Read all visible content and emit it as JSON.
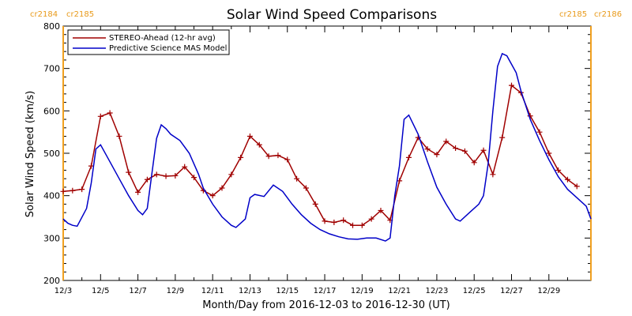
{
  "chart_data": {
    "type": "line",
    "title": "Solar Wind Speed Comparisons",
    "xlabel": "Month/Day from 2016-12-03 to 2016-12-30 (UT)",
    "ylabel": "Solar Wind Speed (km/s)",
    "xlim": [
      "2016-12-03T00",
      "2016-12-31T06"
    ],
    "ylim": [
      200,
      800
    ],
    "y_ticks": [
      200,
      300,
      400,
      500,
      600,
      700,
      800
    ],
    "x_ticks": [
      {
        "date": "2016-12-03",
        "label": "12/3"
      },
      {
        "date": "2016-12-05",
        "label": "12/5"
      },
      {
        "date": "2016-12-07",
        "label": "12/7"
      },
      {
        "date": "2016-12-09",
        "label": "12/9"
      },
      {
        "date": "2016-12-11",
        "label": "12/11"
      },
      {
        "date": "2016-12-13",
        "label": "12/13"
      },
      {
        "date": "2016-12-15",
        "label": "12/15"
      },
      {
        "date": "2016-12-17",
        "label": "12/17"
      },
      {
        "date": "2016-12-19",
        "label": "12/19"
      },
      {
        "date": "2016-12-21",
        "label": "12/21"
      },
      {
        "date": "2016-12-23",
        "label": "12/23"
      },
      {
        "date": "2016-12-25",
        "label": "12/25"
      },
      {
        "date": "2016-12-27",
        "label": "12/27"
      },
      {
        "date": "2016-12-29",
        "label": "12/29"
      }
    ],
    "carrington_markers": [
      {
        "date": "2016-12-03T00",
        "labels": [
          "cr2184",
          "cr2185"
        ],
        "side": "left"
      },
      {
        "date": "2016-12-31T06",
        "labels": [
          "cr2185",
          "cr2186"
        ],
        "side": "right"
      }
    ],
    "legend_position": "top-left",
    "series": [
      {
        "name": "STEREO-Ahead (12-hr avg)",
        "color": "#A00000",
        "marker": "plus",
        "points": [
          [
            "2016-12-03T00",
            410
          ],
          [
            "2016-12-03T12",
            412
          ],
          [
            "2016-12-04T00",
            415
          ],
          [
            "2016-12-04T12",
            470
          ],
          [
            "2016-12-05T00",
            587
          ],
          [
            "2016-12-05T12",
            595
          ],
          [
            "2016-12-06T00",
            540
          ],
          [
            "2016-12-06T12",
            455
          ],
          [
            "2016-12-07T00",
            408
          ],
          [
            "2016-12-07T12",
            438
          ],
          [
            "2016-12-08T00",
            450
          ],
          [
            "2016-12-08T12",
            446
          ],
          [
            "2016-12-09T00",
            447
          ],
          [
            "2016-12-09T12",
            468
          ],
          [
            "2016-12-10T00",
            443
          ],
          [
            "2016-12-10T12",
            412
          ],
          [
            "2016-12-11T00",
            400
          ],
          [
            "2016-12-11T12",
            418
          ],
          [
            "2016-12-12T00",
            450
          ],
          [
            "2016-12-12T12",
            490
          ],
          [
            "2016-12-13T00",
            540
          ],
          [
            "2016-12-13T12",
            520
          ],
          [
            "2016-12-14T00",
            493
          ],
          [
            "2016-12-14T12",
            495
          ],
          [
            "2016-12-15T00",
            485
          ],
          [
            "2016-12-15T12",
            440
          ],
          [
            "2016-12-16T00",
            418
          ],
          [
            "2016-12-16T12",
            380
          ],
          [
            "2016-12-17T00",
            340
          ],
          [
            "2016-12-17T12",
            337
          ],
          [
            "2016-12-18T00",
            342
          ],
          [
            "2016-12-18T12",
            330
          ],
          [
            "2016-12-19T00",
            330
          ],
          [
            "2016-12-19T12",
            345
          ],
          [
            "2016-12-20T00",
            365
          ],
          [
            "2016-12-20T12",
            342
          ],
          [
            "2016-12-21T00",
            435
          ],
          [
            "2016-12-21T12",
            490
          ],
          [
            "2016-12-22T00",
            537
          ],
          [
            "2016-12-22T12",
            510
          ],
          [
            "2016-12-23T00",
            497
          ],
          [
            "2016-12-23T12",
            528
          ],
          [
            "2016-12-24T00",
            512
          ],
          [
            "2016-12-24T12",
            505
          ],
          [
            "2016-12-25T00",
            478
          ],
          [
            "2016-12-25T12",
            507
          ],
          [
            "2016-12-26T00",
            450
          ],
          [
            "2016-12-26T12",
            537
          ],
          [
            "2016-12-27T00",
            660
          ],
          [
            "2016-12-27T12",
            643
          ],
          [
            "2016-12-28T00",
            588
          ],
          [
            "2016-12-28T12",
            550
          ],
          [
            "2016-12-29T00",
            500
          ],
          [
            "2016-12-29T12",
            460
          ],
          [
            "2016-12-30T00",
            438
          ],
          [
            "2016-12-30T12",
            422
          ]
        ]
      },
      {
        "name": "Predictive Science MAS Model",
        "color": "#0000C8",
        "marker": "none",
        "points": [
          [
            "2016-12-03T00",
            345
          ],
          [
            "2016-12-03T06",
            335
          ],
          [
            "2016-12-03T12",
            330
          ],
          [
            "2016-12-03T18",
            328
          ],
          [
            "2016-12-04T06",
            370
          ],
          [
            "2016-12-04T12",
            430
          ],
          [
            "2016-12-04T18",
            510
          ],
          [
            "2016-12-05T00",
            520
          ],
          [
            "2016-12-05T12",
            480
          ],
          [
            "2016-12-06T00",
            440
          ],
          [
            "2016-12-06T12",
            400
          ],
          [
            "2016-12-07T00",
            365
          ],
          [
            "2016-12-07T06",
            355
          ],
          [
            "2016-12-07T12",
            370
          ],
          [
            "2016-12-08T00",
            535
          ],
          [
            "2016-12-08T06",
            567
          ],
          [
            "2016-12-08T12",
            558
          ],
          [
            "2016-12-08T18",
            545
          ],
          [
            "2016-12-09T06",
            530
          ],
          [
            "2016-12-09T18",
            500
          ],
          [
            "2016-12-10T06",
            450
          ],
          [
            "2016-12-10T12",
            418
          ],
          [
            "2016-12-11T00",
            380
          ],
          [
            "2016-12-11T12",
            350
          ],
          [
            "2016-12-12T00",
            330
          ],
          [
            "2016-12-12T06",
            325
          ],
          [
            "2016-12-12T18",
            345
          ],
          [
            "2016-12-13T00",
            395
          ],
          [
            "2016-12-13T06",
            403
          ],
          [
            "2016-12-13T18",
            398
          ],
          [
            "2016-12-14T06",
            425
          ],
          [
            "2016-12-14T18",
            410
          ],
          [
            "2016-12-15T06",
            380
          ],
          [
            "2016-12-15T18",
            355
          ],
          [
            "2016-12-16T06",
            335
          ],
          [
            "2016-12-16T18",
            320
          ],
          [
            "2016-12-17T06",
            310
          ],
          [
            "2016-12-17T18",
            303
          ],
          [
            "2016-12-18T06",
            298
          ],
          [
            "2016-12-18T18",
            297
          ],
          [
            "2016-12-19T06",
            300
          ],
          [
            "2016-12-19T18",
            300
          ],
          [
            "2016-12-20T06",
            293
          ],
          [
            "2016-12-20T12",
            300
          ],
          [
            "2016-12-20T18",
            400
          ],
          [
            "2016-12-21T00",
            470
          ],
          [
            "2016-12-21T06",
            580
          ],
          [
            "2016-12-21T12",
            590
          ],
          [
            "2016-12-22T00",
            545
          ],
          [
            "2016-12-22T12",
            480
          ],
          [
            "2016-12-23T00",
            420
          ],
          [
            "2016-12-23T12",
            380
          ],
          [
            "2016-12-24T00",
            345
          ],
          [
            "2016-12-24T06",
            340
          ],
          [
            "2016-12-24T18",
            360
          ],
          [
            "2016-12-25T06",
            380
          ],
          [
            "2016-12-25T12",
            400
          ],
          [
            "2016-12-25T18",
            475
          ],
          [
            "2016-12-26T00",
            600
          ],
          [
            "2016-12-26T06",
            705
          ],
          [
            "2016-12-26T12",
            735
          ],
          [
            "2016-12-26T18",
            730
          ],
          [
            "2016-12-27T06",
            690
          ],
          [
            "2016-12-27T12",
            648
          ],
          [
            "2016-12-28T00",
            580
          ],
          [
            "2016-12-28T12",
            530
          ],
          [
            "2016-12-29T00",
            485
          ],
          [
            "2016-12-29T12",
            445
          ],
          [
            "2016-12-30T00",
            415
          ],
          [
            "2016-12-30T12",
            395
          ],
          [
            "2016-12-31T00",
            375
          ],
          [
            "2016-12-31T06",
            345
          ]
        ]
      }
    ]
  }
}
